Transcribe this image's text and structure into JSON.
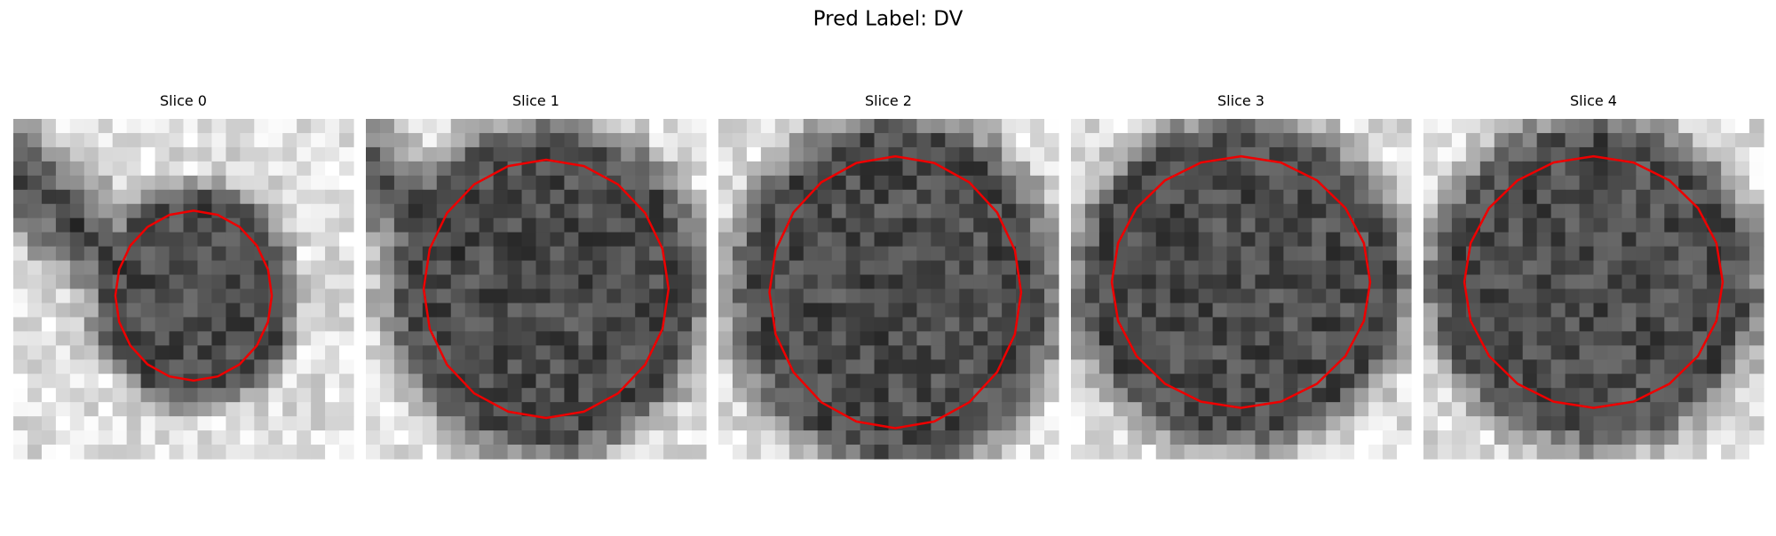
{
  "header": {
    "title": "Pred Label: DV"
  },
  "panels": [
    {
      "title": "Slice 0"
    },
    {
      "title": "Slice 1"
    },
    {
      "title": "Slice 2"
    },
    {
      "title": "Slice 3"
    },
    {
      "title": "Slice 4"
    }
  ]
}
